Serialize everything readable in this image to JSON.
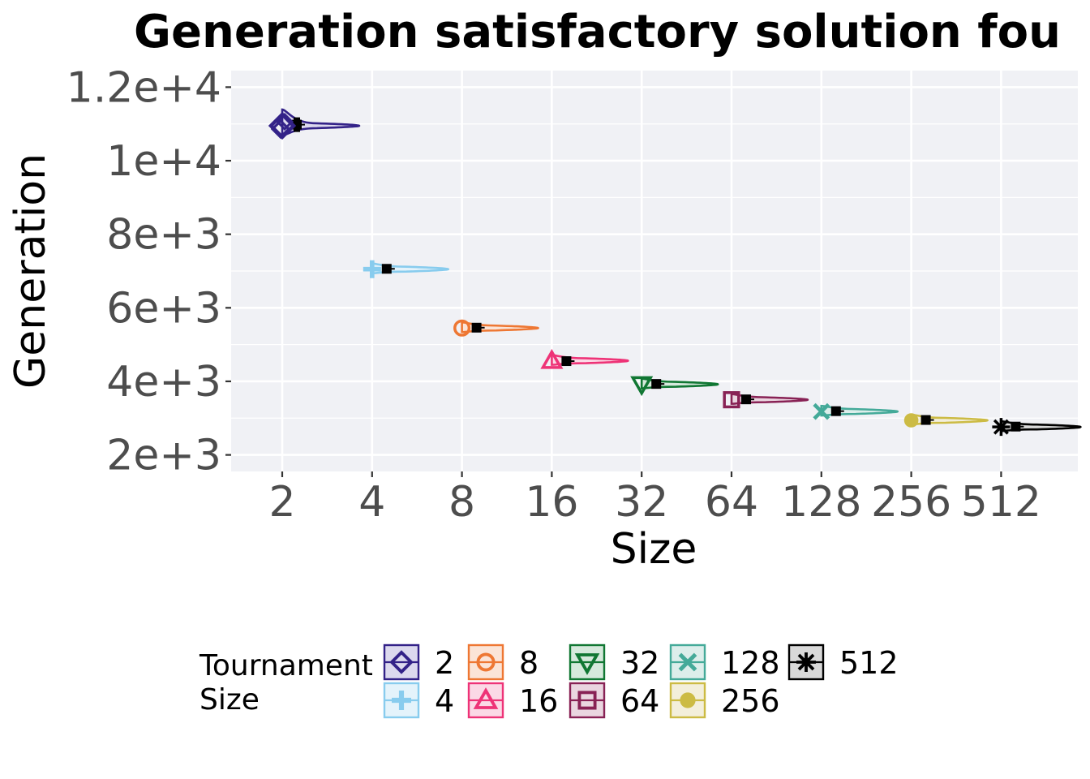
{
  "chart_data": {
    "type": "violin",
    "title": "Generation satisfactory solution fou",
    "xlabel": "Size",
    "ylabel": "Generation",
    "x_scale": "log2",
    "categories": [
      "2",
      "4",
      "8",
      "16",
      "32",
      "64",
      "128",
      "256",
      "512"
    ],
    "y_ticks": [
      "2e+3",
      "4e+3",
      "6e+3",
      "8e+3",
      "1e+4",
      "1.2e+4"
    ],
    "y_tick_values": [
      2000,
      4000,
      6000,
      8000,
      10000,
      12000
    ],
    "ylim": [
      1550,
      12450
    ],
    "grid": true,
    "legend": {
      "title_lines": [
        "Tournament",
        "Size"
      ],
      "placement": "bottom"
    },
    "series": [
      {
        "name": "2",
        "x": 2,
        "value": 10950,
        "mean": 10980,
        "color": "#332288",
        "fill": "#dcd9ee",
        "marker": "diamond"
      },
      {
        "name": "4",
        "x": 4,
        "value": 7050,
        "mean": 7060,
        "color": "#88ccee",
        "fill": "#e4f3fb",
        "marker": "plus"
      },
      {
        "name": "8",
        "x": 8,
        "value": 5450,
        "mean": 5460,
        "color": "#ee7733",
        "fill": "#fbe4d7",
        "marker": "circle"
      },
      {
        "name": "16",
        "x": 16,
        "value": 4560,
        "mean": 4550,
        "color": "#ee3377",
        "fill": "#fbd9e6",
        "marker": "triangle-up"
      },
      {
        "name": "32",
        "x": 32,
        "value": 3920,
        "mean": 3930,
        "color": "#117733",
        "fill": "#d6e9dc",
        "marker": "triangle-down"
      },
      {
        "name": "64",
        "x": 64,
        "value": 3500,
        "mean": 3510,
        "color": "#882255",
        "fill": "#ead6e0",
        "marker": "square"
      },
      {
        "name": "128",
        "x": 128,
        "value": 3180,
        "mean": 3190,
        "color": "#44aa99",
        "fill": "#dceeeb",
        "marker": "cross"
      },
      {
        "name": "256",
        "x": 256,
        "value": 2940,
        "mean": 2950,
        "color": "#ccbb44",
        "fill": "#f3efdb",
        "marker": "dot"
      },
      {
        "name": "512",
        "x": 512,
        "value": 2760,
        "mean": 2770,
        "color": "#000000",
        "fill": "#d9d9d9",
        "marker": "asterisk"
      }
    ]
  }
}
